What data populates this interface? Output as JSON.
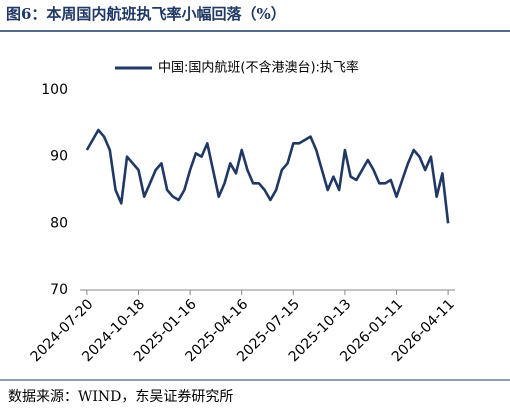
{
  "chart_data": {
    "type": "line",
    "title": "图6：本周国内航班执飞率小幅回落（%）",
    "source": "数据来源：WIND，东吴证券研究所",
    "x": [
      "2024-07-20",
      "2024-07-30",
      "2024-08-09",
      "2024-08-19",
      "2024-08-29",
      "2024-09-08",
      "2024-09-18",
      "2024-09-28",
      "2024-10-08",
      "2024-10-18",
      "2024-10-28",
      "2024-11-07",
      "2024-11-17",
      "2024-11-27",
      "2024-12-07",
      "2024-12-17",
      "2024-12-27",
      "2025-01-06",
      "2025-01-16",
      "2025-01-26",
      "2025-02-05",
      "2025-02-15",
      "2025-02-25",
      "2025-03-07",
      "2025-03-17",
      "2025-03-27",
      "2025-04-06",
      "2025-04-16",
      "2025-04-26",
      "2025-05-06",
      "2025-05-16",
      "2025-05-26",
      "2025-06-05",
      "2025-06-15",
      "2025-06-25",
      "2025-07-05",
      "2025-07-15",
      "2025-07-25",
      "2025-08-04",
      "2025-08-14",
      "2025-08-24",
      "2025-09-03",
      "2025-09-13",
      "2025-09-23",
      "2025-10-03",
      "2025-10-13",
      "2025-10-23",
      "2025-11-02",
      "2025-11-12",
      "2025-11-22",
      "2025-12-02",
      "2025-12-12",
      "2025-12-22",
      "2026-01-01",
      "2026-01-11",
      "2026-01-21",
      "2026-01-31",
      "2026-02-10",
      "2026-02-20",
      "2026-03-02",
      "2026-03-12",
      "2026-03-22",
      "2026-04-01",
      "2026-04-11"
    ],
    "series": [
      {
        "name": "中国:国内航班(不含港澳台):执飞率",
        "color": "#203864",
        "values": [
          91,
          92.5,
          94,
          93,
          91,
          85,
          83,
          90,
          89,
          88,
          84,
          86,
          88,
          89,
          85,
          84,
          83.5,
          85,
          88,
          90.5,
          90,
          92,
          88,
          84,
          86,
          89,
          87.5,
          91,
          88,
          86,
          86,
          85,
          83.5,
          85,
          88,
          89,
          92,
          92,
          92.5,
          93,
          91,
          88,
          85,
          87,
          85,
          91,
          87,
          86.5,
          88,
          89.5,
          88,
          86,
          86,
          86.5,
          84,
          86.5,
          89,
          91,
          90,
          88,
          90,
          84,
          87.5,
          80
        ]
      }
    ],
    "xlim": [
      "2024-07-08",
      "2026-04-23"
    ],
    "xticks": [
      "2024-07-20",
      "2024-10-18",
      "2025-01-16",
      "2025-04-16",
      "2025-07-15",
      "2025-10-13",
      "2026-01-11",
      "2026-04-11"
    ],
    "ylim": [
      70,
      100
    ],
    "yticks": [
      70,
      80,
      90,
      100
    ],
    "legend": "top"
  }
}
